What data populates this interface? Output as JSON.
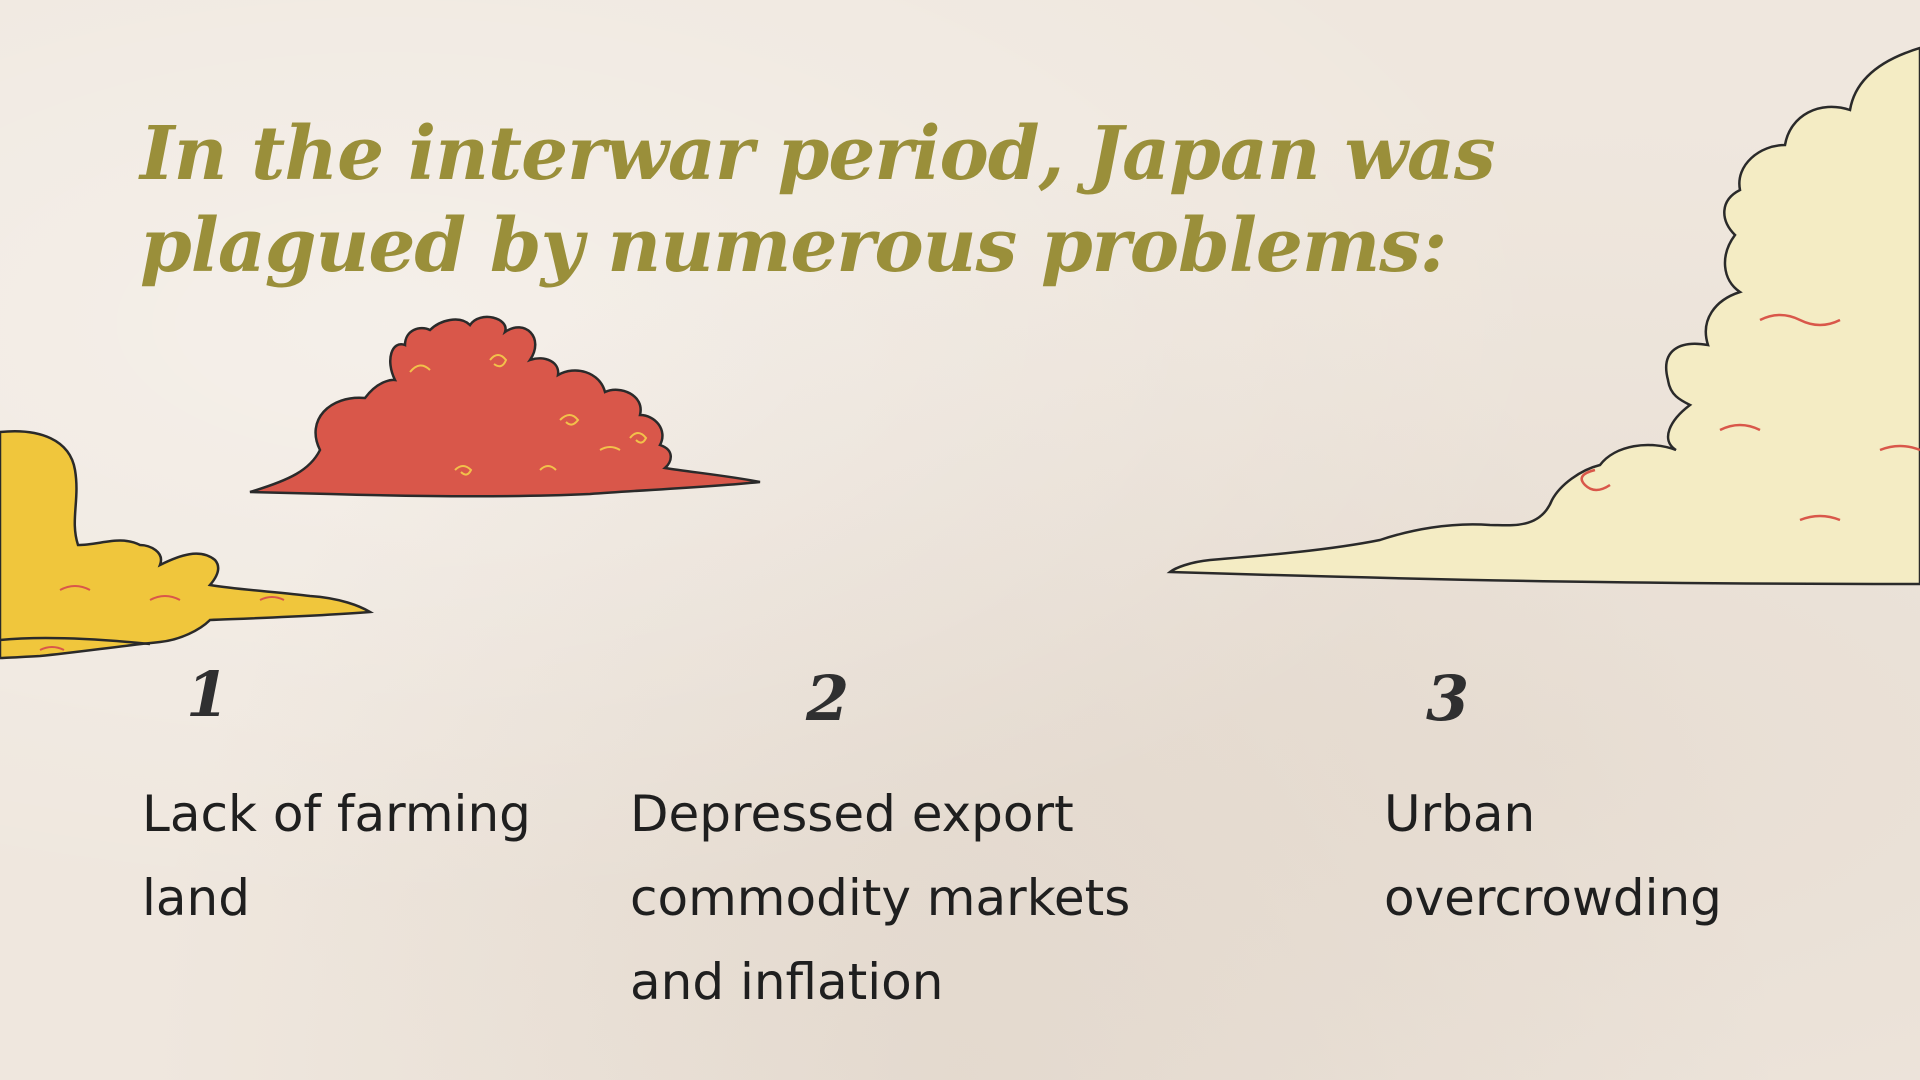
{
  "title": "In the interwar period, Japan was plagued by numerous problems:",
  "items": [
    {
      "number": "1",
      "text": "Lack of farming land"
    },
    {
      "number": "2",
      "text": "Depressed export commodity markets and inflation"
    },
    {
      "number": "3",
      "text": "Urban overcrowding"
    }
  ],
  "colors": {
    "background": "#efe7de",
    "title": "#9a8f3a",
    "number": "#2f2f30",
    "text": "#1f1f1f",
    "cloud_red": "#d9574a",
    "cloud_yellow": "#f0c63c",
    "cloud_cream": "#f4ecc4"
  },
  "icons": [
    "red-cloud-illustration",
    "yellow-cloud-illustration",
    "cream-cloud-illustration"
  ]
}
